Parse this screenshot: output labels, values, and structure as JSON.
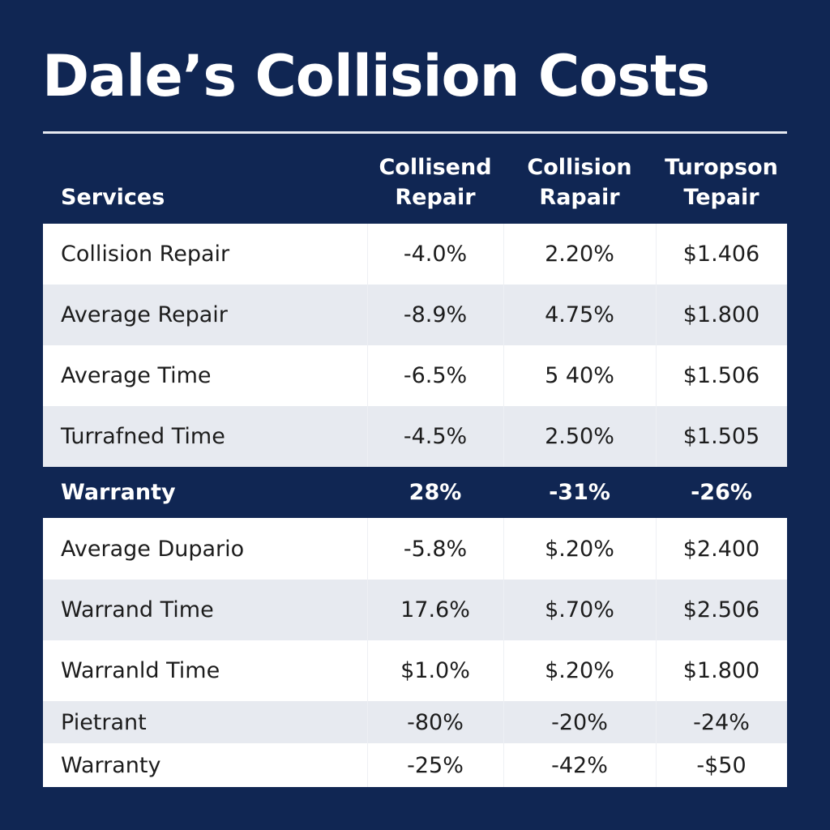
{
  "title": "Dale’s Collision Costs",
  "table": {
    "headers": {
      "services": "Services",
      "col1": [
        "Collisend",
        "Repair"
      ],
      "col2": [
        "Collision",
        "Rapair"
      ],
      "col3": [
        "Turopson",
        "Tepair"
      ]
    },
    "rows": [
      {
        "label": "Collision Repair",
        "v1": "-4.0%",
        "v2": "2.20%",
        "v3": "$1.406"
      },
      {
        "label": "Average Repair",
        "v1": "-8.9%",
        "v2": "4.75%",
        "v3": "$1.800"
      },
      {
        "label": "Average Time",
        "v1": "-6.5%",
        "v2": "5 40%",
        "v3": "$1.506"
      },
      {
        "label": "Turrafned Time",
        "v1": "-4.5%",
        "v2": "2.50%",
        "v3": "$1.505"
      },
      {
        "label": "Warranty",
        "v1": "28%",
        "v2": "-31%",
        "v3": "-26%"
      },
      {
        "label": "Average Dupario",
        "v1": "-5.8%",
        "v2": "$.20%",
        "v3": "$2.400"
      },
      {
        "label": "Warrand Time",
        "v1": "17.6%",
        "v2": "$.70%",
        "v3": "$2.506"
      },
      {
        "label": "Warranld Time",
        "v1": "$1.0%",
        "v2": "$.20%",
        "v3": "$1.800"
      },
      {
        "label": "Pietrant",
        "v1": "-80%",
        "v2": "-20%",
        "v3": "-24%"
      },
      {
        "label": "Warranty",
        "v1": "-25%",
        "v2": "-42%",
        "v3": "-$50"
      }
    ]
  },
  "colors": {
    "background": "#102653",
    "row_white": "#ffffff",
    "row_shade": "#e7eaf0",
    "text_dark": "#1c1c1c",
    "text_light": "#ffffff"
  }
}
